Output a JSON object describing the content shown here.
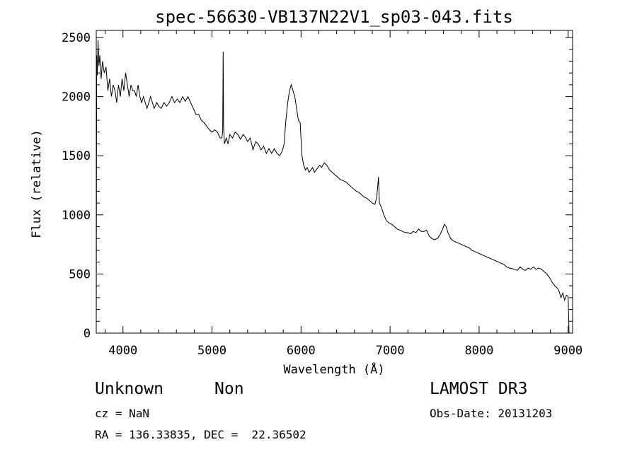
{
  "chart_data": {
    "type": "line",
    "title": "spec-56630-VB137N22V1_sp03-043.fits",
    "xlabel": "Wavelength (Å)",
    "ylabel": "Flux (relative)",
    "xlim": [
      3700,
      9050
    ],
    "ylim": [
      0,
      2560
    ],
    "xticks": [
      4000,
      5000,
      6000,
      7000,
      8000,
      9000
    ],
    "yticks": [
      0,
      500,
      1000,
      1500,
      2000,
      2500
    ],
    "grid": false,
    "series": [
      {
        "color": "#000000",
        "points": [
          [
            3700,
            0
          ],
          [
            3705,
            2350
          ],
          [
            3712,
            2180
          ],
          [
            3720,
            2480
          ],
          [
            3730,
            2260
          ],
          [
            3740,
            2350
          ],
          [
            3755,
            2150
          ],
          [
            3770,
            2300
          ],
          [
            3790,
            2200
          ],
          [
            3810,
            2250
          ],
          [
            3830,
            2050
          ],
          [
            3850,
            2150
          ],
          [
            3870,
            2000
          ],
          [
            3890,
            2100
          ],
          [
            3910,
            2050
          ],
          [
            3930,
            1950
          ],
          [
            3950,
            2100
          ],
          [
            3970,
            2000
          ],
          [
            3990,
            2150
          ],
          [
            4010,
            2050
          ],
          [
            4030,
            2200
          ],
          [
            4050,
            2100
          ],
          [
            4070,
            2000
          ],
          [
            4090,
            2100
          ],
          [
            4110,
            2050
          ],
          [
            4130,
            2050
          ],
          [
            4150,
            2000
          ],
          [
            4170,
            2100
          ],
          [
            4190,
            2000
          ],
          [
            4210,
            1950
          ],
          [
            4230,
            2000
          ],
          [
            4250,
            1950
          ],
          [
            4270,
            1900
          ],
          [
            4290,
            1950
          ],
          [
            4310,
            2000
          ],
          [
            4330,
            1950
          ],
          [
            4350,
            1900
          ],
          [
            4380,
            1950
          ],
          [
            4400,
            1920
          ],
          [
            4430,
            1900
          ],
          [
            4460,
            1950
          ],
          [
            4490,
            1920
          ],
          [
            4520,
            1950
          ],
          [
            4550,
            2000
          ],
          [
            4580,
            1950
          ],
          [
            4610,
            1980
          ],
          [
            4640,
            1950
          ],
          [
            4670,
            2000
          ],
          [
            4700,
            1960
          ],
          [
            4730,
            2000
          ],
          [
            4760,
            1950
          ],
          [
            4790,
            1900
          ],
          [
            4820,
            1850
          ],
          [
            4850,
            1850
          ],
          [
            4880,
            1800
          ],
          [
            4910,
            1780
          ],
          [
            4940,
            1750
          ],
          [
            4970,
            1720
          ],
          [
            5000,
            1700
          ],
          [
            5030,
            1720
          ],
          [
            5060,
            1700
          ],
          [
            5090,
            1650
          ],
          [
            5110,
            1650
          ],
          [
            5120,
            1700
          ],
          [
            5125,
            2380
          ],
          [
            5130,
            1750
          ],
          [
            5140,
            1600
          ],
          [
            5160,
            1650
          ],
          [
            5180,
            1600
          ],
          [
            5200,
            1680
          ],
          [
            5230,
            1650
          ],
          [
            5260,
            1700
          ],
          [
            5290,
            1680
          ],
          [
            5320,
            1640
          ],
          [
            5350,
            1680
          ],
          [
            5380,
            1650
          ],
          [
            5400,
            1620
          ],
          [
            5430,
            1650
          ],
          [
            5460,
            1550
          ],
          [
            5490,
            1620
          ],
          [
            5520,
            1600
          ],
          [
            5550,
            1550
          ],
          [
            5580,
            1580
          ],
          [
            5610,
            1520
          ],
          [
            5640,
            1560
          ],
          [
            5670,
            1520
          ],
          [
            5700,
            1560
          ],
          [
            5730,
            1520
          ],
          [
            5760,
            1500
          ],
          [
            5790,
            1540
          ],
          [
            5810,
            1600
          ],
          [
            5830,
            1800
          ],
          [
            5850,
            1950
          ],
          [
            5870,
            2050
          ],
          [
            5890,
            2100
          ],
          [
            5910,
            2050
          ],
          [
            5930,
            2000
          ],
          [
            5950,
            1900
          ],
          [
            5970,
            1800
          ],
          [
            5990,
            1780
          ],
          [
            6010,
            1500
          ],
          [
            6030,
            1420
          ],
          [
            6050,
            1380
          ],
          [
            6070,
            1400
          ],
          [
            6090,
            1360
          ],
          [
            6110,
            1380
          ],
          [
            6130,
            1400
          ],
          [
            6150,
            1360
          ],
          [
            6170,
            1380
          ],
          [
            6190,
            1400
          ],
          [
            6210,
            1420
          ],
          [
            6230,
            1400
          ],
          [
            6260,
            1440
          ],
          [
            6290,
            1420
          ],
          [
            6320,
            1380
          ],
          [
            6350,
            1360
          ],
          [
            6380,
            1340
          ],
          [
            6410,
            1320
          ],
          [
            6440,
            1300
          ],
          [
            6470,
            1290
          ],
          [
            6500,
            1280
          ],
          [
            6530,
            1260
          ],
          [
            6560,
            1240
          ],
          [
            6590,
            1220
          ],
          [
            6620,
            1200
          ],
          [
            6650,
            1190
          ],
          [
            6680,
            1170
          ],
          [
            6710,
            1150
          ],
          [
            6740,
            1140
          ],
          [
            6770,
            1120
          ],
          [
            6800,
            1100
          ],
          [
            6830,
            1090
          ],
          [
            6850,
            1150
          ],
          [
            6870,
            1320
          ],
          [
            6880,
            1100
          ],
          [
            6900,
            1070
          ],
          [
            6930,
            1000
          ],
          [
            6960,
            950
          ],
          [
            6990,
            930
          ],
          [
            7020,
            920
          ],
          [
            7050,
            900
          ],
          [
            7080,
            880
          ],
          [
            7110,
            870
          ],
          [
            7140,
            860
          ],
          [
            7170,
            850
          ],
          [
            7200,
            850
          ],
          [
            7230,
            840
          ],
          [
            7260,
            860
          ],
          [
            7290,
            850
          ],
          [
            7320,
            880
          ],
          [
            7350,
            860
          ],
          [
            7380,
            860
          ],
          [
            7410,
            870
          ],
          [
            7440,
            820
          ],
          [
            7470,
            800
          ],
          [
            7500,
            790
          ],
          [
            7530,
            800
          ],
          [
            7560,
            830
          ],
          [
            7590,
            880
          ],
          [
            7610,
            920
          ],
          [
            7630,
            900
          ],
          [
            7650,
            850
          ],
          [
            7680,
            800
          ],
          [
            7710,
            780
          ],
          [
            7740,
            770
          ],
          [
            7770,
            760
          ],
          [
            7800,
            750
          ],
          [
            7830,
            740
          ],
          [
            7860,
            730
          ],
          [
            7890,
            720
          ],
          [
            7920,
            700
          ],
          [
            7950,
            690
          ],
          [
            7980,
            680
          ],
          [
            8010,
            670
          ],
          [
            8040,
            660
          ],
          [
            8070,
            650
          ],
          [
            8100,
            640
          ],
          [
            8130,
            630
          ],
          [
            8160,
            620
          ],
          [
            8190,
            610
          ],
          [
            8220,
            600
          ],
          [
            8250,
            590
          ],
          [
            8280,
            580
          ],
          [
            8310,
            560
          ],
          [
            8340,
            550
          ],
          [
            8370,
            545
          ],
          [
            8400,
            540
          ],
          [
            8430,
            530
          ],
          [
            8460,
            560
          ],
          [
            8490,
            540
          ],
          [
            8520,
            530
          ],
          [
            8550,
            550
          ],
          [
            8580,
            540
          ],
          [
            8610,
            560
          ],
          [
            8640,
            540
          ],
          [
            8670,
            550
          ],
          [
            8700,
            540
          ],
          [
            8730,
            520
          ],
          [
            8760,
            500
          ],
          [
            8790,
            470
          ],
          [
            8820,
            430
          ],
          [
            8850,
            400
          ],
          [
            8880,
            380
          ],
          [
            8900,
            350
          ],
          [
            8920,
            300
          ],
          [
            8940,
            340
          ],
          [
            8960,
            280
          ],
          [
            8980,
            320
          ],
          [
            9000,
            310
          ],
          [
            9010,
            0
          ]
        ]
      }
    ]
  },
  "info": {
    "classification": "Unknown",
    "subclass": "Non",
    "survey": "LAMOST DR3",
    "redshift": "cz = NaN",
    "obs_date": "Obs-Date: 20131203",
    "coords": "RA = 136.33835, DEC =  22.36502"
  }
}
